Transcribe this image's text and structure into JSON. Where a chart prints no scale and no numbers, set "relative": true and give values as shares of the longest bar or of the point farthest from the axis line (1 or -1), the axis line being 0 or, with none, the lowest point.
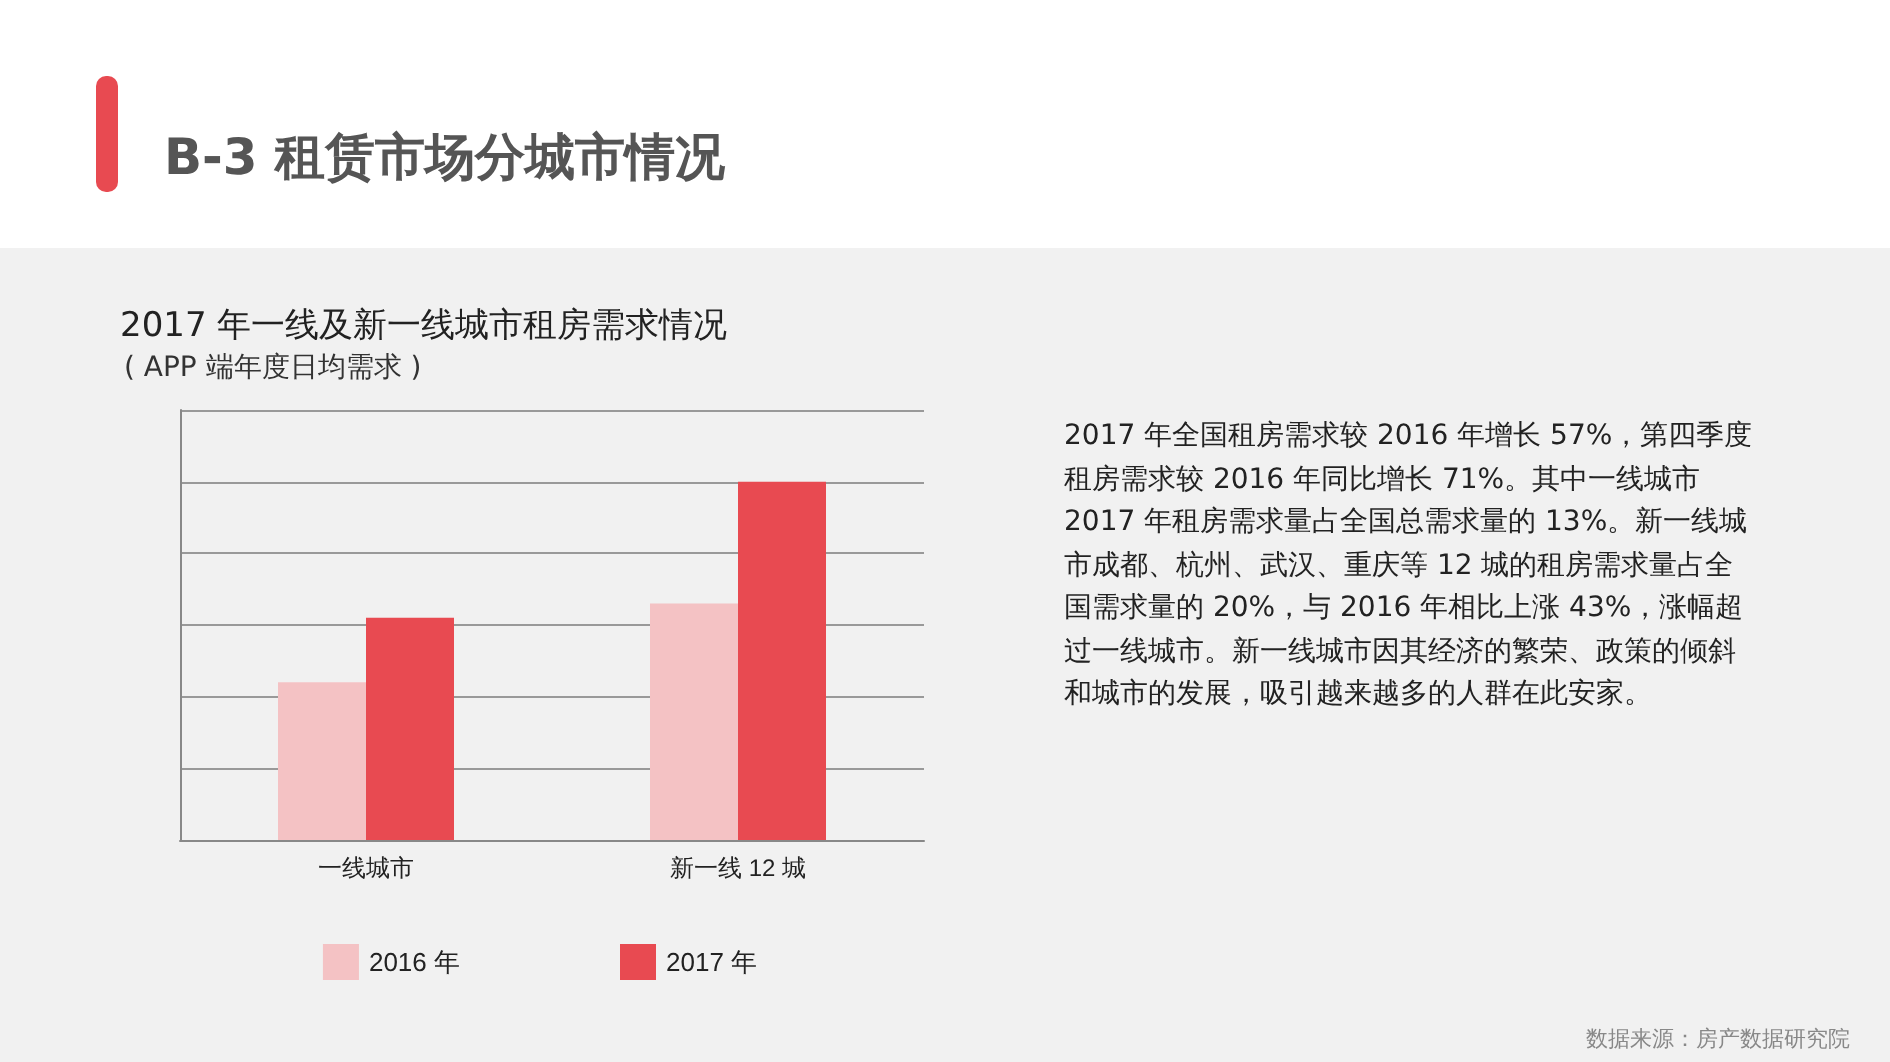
{
  "chart_data": {
    "type": "bar",
    "title": "2017 年一线及新一线城市租房需求情况",
    "subtitle": "( APP 端年度日均需求 )",
    "categories": [
      "一线城市",
      "新一线 12 城"
    ],
    "series": [
      {
        "name": "2016 年",
        "color": "#f4c2c4",
        "values": [
          0.44,
          0.66
        ]
      },
      {
        "name": "2017 年",
        "color": "#e84a51",
        "values": [
          0.62,
          1
        ]
      }
    ],
    "relative": true,
    "grid": "y",
    "legend": "bottom",
    "annotations": [
      "B-3 租赁市场分城市情况",
      "2017 年全国租房需求较 2016 年增长 57%，第四季度租房需求较 2016 年同比增长 71%。其中一线城市 2017 年租房需求量占全国总需求量的 13%。新一线城市成都、杭州、武汉、重庆等 12 城的租房需求量占全国需求量的 20%，与 2016 年相比上涨 43%，涨幅超过一线城市。新一线城市因其经济的繁荣、政策的倾斜和城市的发展，吸引越来越多的人群在此安家。",
      "数据来源：房产数据研究院"
    ]
  }
}
